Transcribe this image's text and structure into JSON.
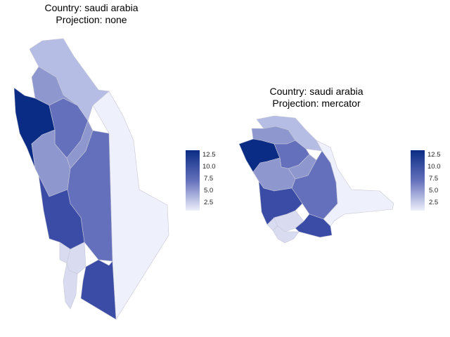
{
  "panels": [
    {
      "title_line1": "Country: saudi arabia",
      "title_line2": "Projection: none"
    },
    {
      "title_line1": "Country: saudi arabia",
      "title_line2": "Projection: mercator"
    }
  ],
  "legend": {
    "ticks": [
      "12.5",
      "10.0",
      "7.5",
      "5.0",
      "2.5"
    ],
    "color_low": "#eef0fb",
    "color_high": "#0b2c84"
  },
  "colors": {
    "v_lowest": "#eef0fb",
    "v_low": "#d9dcf1",
    "v_midlow": "#b6bde4",
    "v_mid": "#8e98cf",
    "v_midhigh": "#6470bb",
    "v_high": "#3a4ca6",
    "v_highest": "#0b2c84"
  }
}
